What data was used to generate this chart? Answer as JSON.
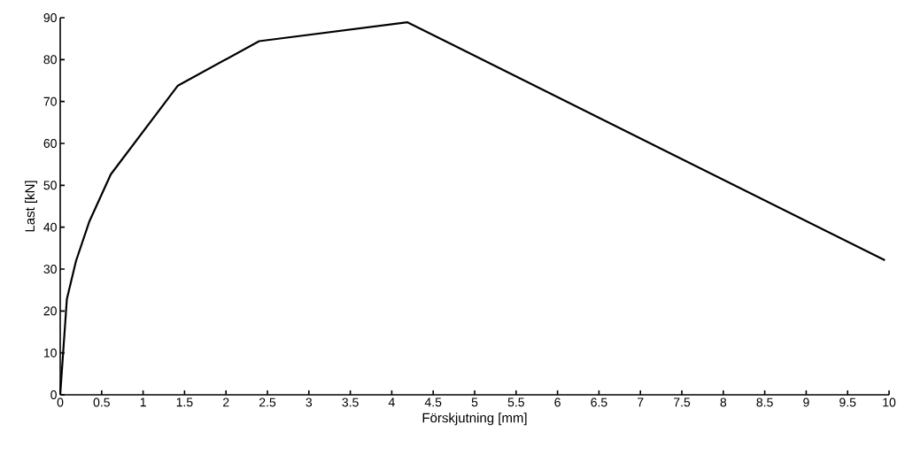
{
  "chart_data": {
    "type": "line",
    "xlabel": "Förskjutning [mm]",
    "ylabel": "Last [kN]",
    "x": [
      0,
      0.08,
      0.19,
      0.35,
      0.61,
      1.42,
      2.4,
      4.19,
      9.95
    ],
    "series": [
      {
        "color": "#000000",
        "values": [
          0,
          22.8,
          31.9,
          41.3,
          52.6,
          73.8,
          84.4,
          88.9,
          32.1
        ]
      }
    ],
    "xlim": [
      0,
      10
    ],
    "ylim": [
      0,
      90
    ],
    "xticks": [
      0,
      0.5,
      1,
      1.5,
      2,
      2.5,
      3,
      3.5,
      4,
      4.5,
      5,
      5.5,
      6,
      6.5,
      7,
      7.5,
      8,
      8.5,
      9,
      9.5,
      10
    ],
    "yticks": [
      0,
      10,
      20,
      30,
      40,
      50,
      60,
      70,
      80,
      90
    ],
    "marker": "none",
    "line_style": "solid"
  }
}
